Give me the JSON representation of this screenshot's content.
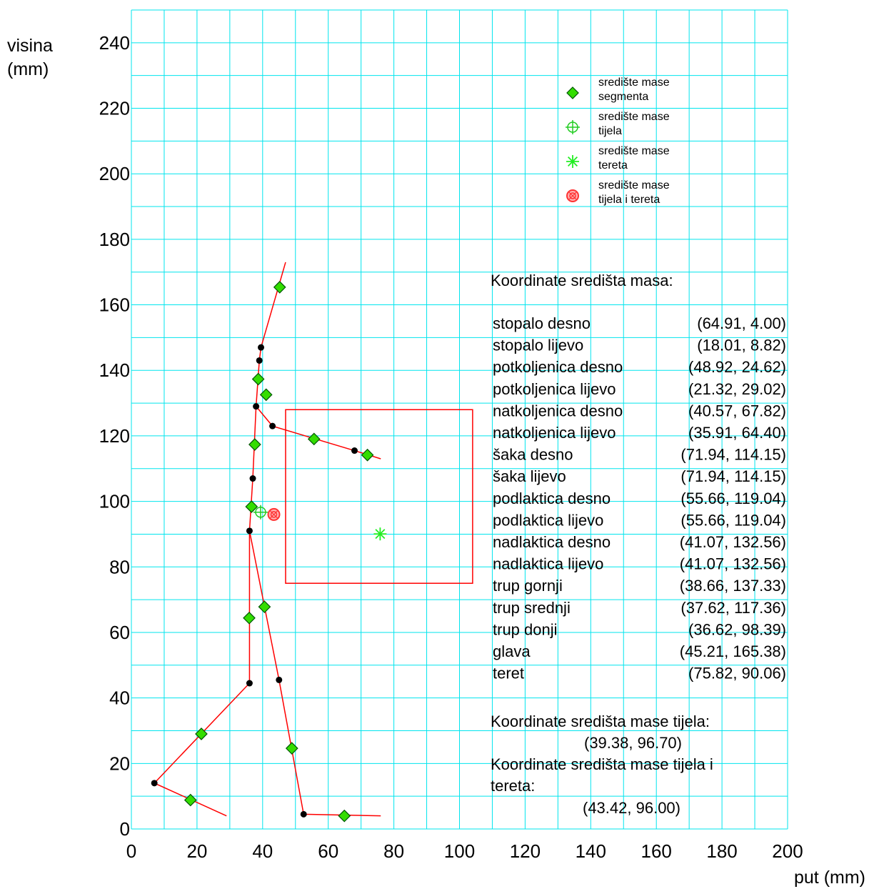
{
  "chart_data": {
    "type": "scatter",
    "xlabel": "put (mm)",
    "ylabel": [
      "visina",
      "(mm)"
    ],
    "xlim": [
      0,
      200
    ],
    "ylim": [
      0,
      250
    ],
    "xticks": [
      0,
      20,
      40,
      60,
      80,
      100,
      120,
      140,
      160,
      180,
      200
    ],
    "yticks": [
      0,
      20,
      40,
      60,
      80,
      100,
      120,
      140,
      160,
      180,
      200,
      220,
      240
    ],
    "grid": true,
    "grid_color": "#00e5ee",
    "legend_placement": "top-right",
    "legend": [
      {
        "label": [
          "središte mase",
          "segmenta"
        ],
        "marker": "diamond"
      },
      {
        "label": [
          "središte mase",
          "tijela"
        ],
        "marker": "crosshair"
      },
      {
        "label": [
          "središte mase",
          "tereta"
        ],
        "marker": "star"
      },
      {
        "label": [
          "središte mase",
          "tijela i tereta"
        ],
        "marker": "target"
      }
    ],
    "skeleton": [
      [
        [
          29,
          4
        ],
        [
          7,
          14
        ],
        [
          36,
          44.5
        ],
        [
          36,
          91
        ],
        [
          37,
          107
        ],
        [
          38,
          129
        ],
        [
          39,
          143
        ],
        [
          39.5,
          147
        ],
        [
          47,
          173
        ]
      ],
      [
        [
          76,
          4
        ],
        [
          52.5,
          4.5
        ],
        [
          45,
          45.5
        ],
        [
          36,
          91
        ]
      ],
      [
        [
          38,
          129
        ],
        [
          43,
          123
        ],
        [
          68,
          115.5
        ],
        [
          76,
          113
        ]
      ]
    ],
    "joints": [
      [
        7,
        14
      ],
      [
        36,
        44.5
      ],
      [
        52.5,
        4.5
      ],
      [
        45,
        45.5
      ],
      [
        36,
        91
      ],
      [
        37,
        107
      ],
      [
        38,
        129
      ],
      [
        39,
        143
      ],
      [
        39.5,
        147
      ],
      [
        43,
        123
      ],
      [
        68,
        115.5
      ]
    ],
    "segment_points": [
      [
        64.91,
        4.0
      ],
      [
        18.01,
        8.82
      ],
      [
        48.92,
        24.62
      ],
      [
        21.32,
        29.02
      ],
      [
        40.57,
        67.82
      ],
      [
        35.91,
        64.4
      ],
      [
        71.94,
        114.15
      ],
      [
        55.66,
        119.04
      ],
      [
        41.07,
        132.56
      ],
      [
        38.66,
        137.33
      ],
      [
        37.62,
        117.36
      ],
      [
        36.62,
        98.39
      ],
      [
        45.21,
        165.38
      ]
    ],
    "body_com": [
      39.38,
      96.7
    ],
    "load_com": [
      75.82,
      90.06
    ],
    "total_com": [
      43.42,
      96.0
    ],
    "load_box": {
      "x": [
        47,
        104
      ],
      "y": [
        75,
        128
      ]
    },
    "colors": {
      "line": "#ff0000",
      "diamond": "#33dd00",
      "diamond_edge": "#005500",
      "joint": "#000000",
      "load_star": "#22ee22",
      "body_cross": "#22cc22",
      "total": "#ff3333"
    },
    "coordinates_title": "Koordinate središta masa:",
    "coordinates": [
      {
        "name": "stopalo desno",
        "value": "(64.91, 4.00)"
      },
      {
        "name": "stopalo lijevo",
        "value": "(18.01, 8.82)"
      },
      {
        "name": "potkoljenica desno",
        "value": "(48.92, 24.62)"
      },
      {
        "name": "potkoljenica lijevo",
        "value": "(21.32, 29.02)"
      },
      {
        "name": "natkoljenica desno",
        "value": "(40.57, 67.82)"
      },
      {
        "name": "natkoljenica lijevo",
        "value": "(35.91, 64.40)"
      },
      {
        "name": "šaka desno",
        "value": "(71.94, 114.15)"
      },
      {
        "name": "šaka lijevo",
        "value": "(71.94, 114.15)"
      },
      {
        "name": "podlaktica desno",
        "value": "(55.66, 119.04)"
      },
      {
        "name": "podlaktica lijevo",
        "value": "(55.66, 119.04)"
      },
      {
        "name": "nadlaktica desno",
        "value": "(41.07, 132.56)"
      },
      {
        "name": "nadlaktica lijevo",
        "value": "(41.07, 132.56)"
      },
      {
        "name": "trup gornji",
        "value": "(38.66, 137.33)"
      },
      {
        "name": "trup srednji",
        "value": "(37.62, 117.36)"
      },
      {
        "name": "trup donji",
        "value": "(36.62, 98.39)"
      },
      {
        "name": "glava",
        "value": "(45.21, 165.38)"
      },
      {
        "name": "teret",
        "value": "(75.82, 90.06)"
      }
    ],
    "body_title": "Koordinate središta mase tijela:",
    "body_value": "(39.38, 96.70)",
    "total_title": [
      "Koordinate središta mase tijela i",
      "tereta:"
    ],
    "total_value": "(43.42, 96.00)"
  }
}
